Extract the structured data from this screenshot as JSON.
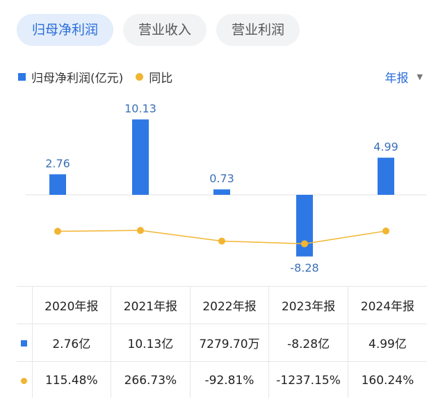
{
  "tabs": [
    {
      "label": "归母净利润",
      "active": true
    },
    {
      "label": "营业收入",
      "active": false
    },
    {
      "label": "营业利润",
      "active": false
    }
  ],
  "legend": {
    "bar_label": "归母净利润(亿元)",
    "line_label": "同比"
  },
  "period": {
    "label": "年报"
  },
  "colors": {
    "bar": "#2e78e6",
    "line": "#f2b531",
    "label": "#3a6fb8",
    "positive": "#e0453a",
    "negative": "#20a35a",
    "active_tab": "#2a6ed8"
  },
  "chart_data": {
    "type": "bar",
    "categories": [
      "2020年报",
      "2021年报",
      "2022年报",
      "2023年报",
      "2024年报"
    ],
    "series": [
      {
        "name": "归母净利润(亿元)",
        "type": "bar",
        "values": [
          2.76,
          10.13,
          0.73,
          -8.28,
          4.99
        ],
        "labels": [
          "2.76",
          "10.13",
          "0.73",
          "-8.28",
          "4.99"
        ]
      },
      {
        "name": "同比",
        "type": "line",
        "values": [
          115.48,
          266.73,
          -92.81,
          -1237.15,
          160.24
        ]
      }
    ],
    "legend_position": "top-left",
    "grid": false
  },
  "table": {
    "headers": [
      "2020年报",
      "2021年报",
      "2022年报",
      "2023年报",
      "2024年报"
    ],
    "profit": [
      "2.76亿",
      "10.13亿",
      "7279.70万",
      "-8.28亿",
      "4.99亿"
    ],
    "yoy": [
      {
        "text": "115.48%",
        "sign": "pos"
      },
      {
        "text": "266.73%",
        "sign": "pos"
      },
      {
        "text": "-92.81%",
        "sign": "neg"
      },
      {
        "text": "-1237.15%",
        "sign": "neg"
      },
      {
        "text": "160.24%",
        "sign": "pos"
      }
    ]
  }
}
